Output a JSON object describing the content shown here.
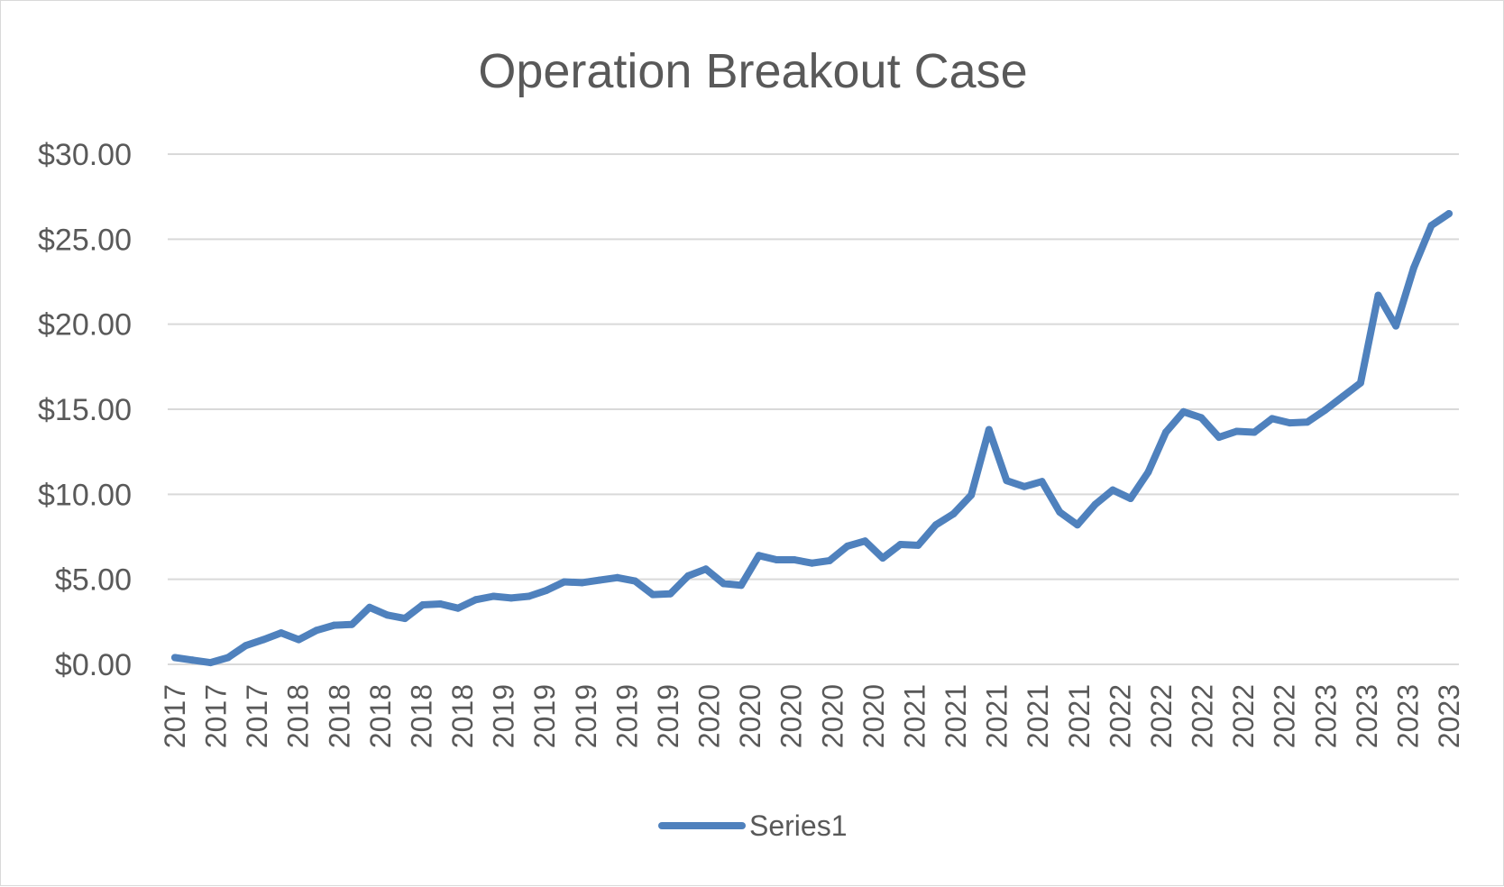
{
  "chart_data": {
    "type": "line",
    "title": "Operation Breakout Case",
    "xlabel": "",
    "ylabel": "",
    "ylim": [
      0,
      30
    ],
    "yticks": [
      "$0.00",
      "$5.00",
      "$10.00",
      "$15.00",
      "$20.00",
      "$25.00",
      "$30.00"
    ],
    "ytick_values": [
      0,
      5,
      10,
      15,
      20,
      25,
      30
    ],
    "xtick_labels": [
      "2017",
      "2017",
      "2017",
      "2018",
      "2018",
      "2018",
      "2018",
      "2018",
      "2019",
      "2019",
      "2019",
      "2019",
      "2019",
      "2020",
      "2020",
      "2020",
      "2020",
      "2020",
      "2021",
      "2021",
      "2021",
      "2021",
      "2021",
      "2022",
      "2022",
      "2022",
      "2022",
      "2022",
      "2023",
      "2023",
      "2023",
      "2023"
    ],
    "grid": true,
    "legend_position": "bottom",
    "color": "#4f81bd",
    "series": [
      {
        "name": "Series1",
        "values": [
          0.4,
          0.25,
          0.1,
          0.4,
          1.1,
          1.45,
          1.85,
          1.45,
          2.0,
          2.3,
          2.35,
          3.35,
          2.9,
          2.7,
          3.5,
          3.55,
          3.3,
          3.8,
          4.0,
          3.9,
          4.0,
          4.35,
          4.85,
          4.8,
          4.95,
          5.1,
          4.9,
          4.1,
          4.15,
          5.2,
          5.6,
          4.75,
          4.65,
          6.4,
          6.15,
          6.15,
          5.95,
          6.1,
          6.95,
          7.25,
          6.25,
          7.05,
          7.0,
          8.2,
          8.85,
          9.95,
          13.8,
          10.8,
          10.45,
          10.75,
          8.95,
          8.2,
          9.4,
          10.25,
          9.75,
          11.3,
          13.65,
          14.85,
          14.5,
          13.35,
          13.7,
          13.65,
          14.45,
          14.2,
          14.25,
          14.95,
          15.75,
          16.55,
          21.7,
          19.9,
          23.3,
          25.8,
          26.5
        ]
      }
    ]
  }
}
